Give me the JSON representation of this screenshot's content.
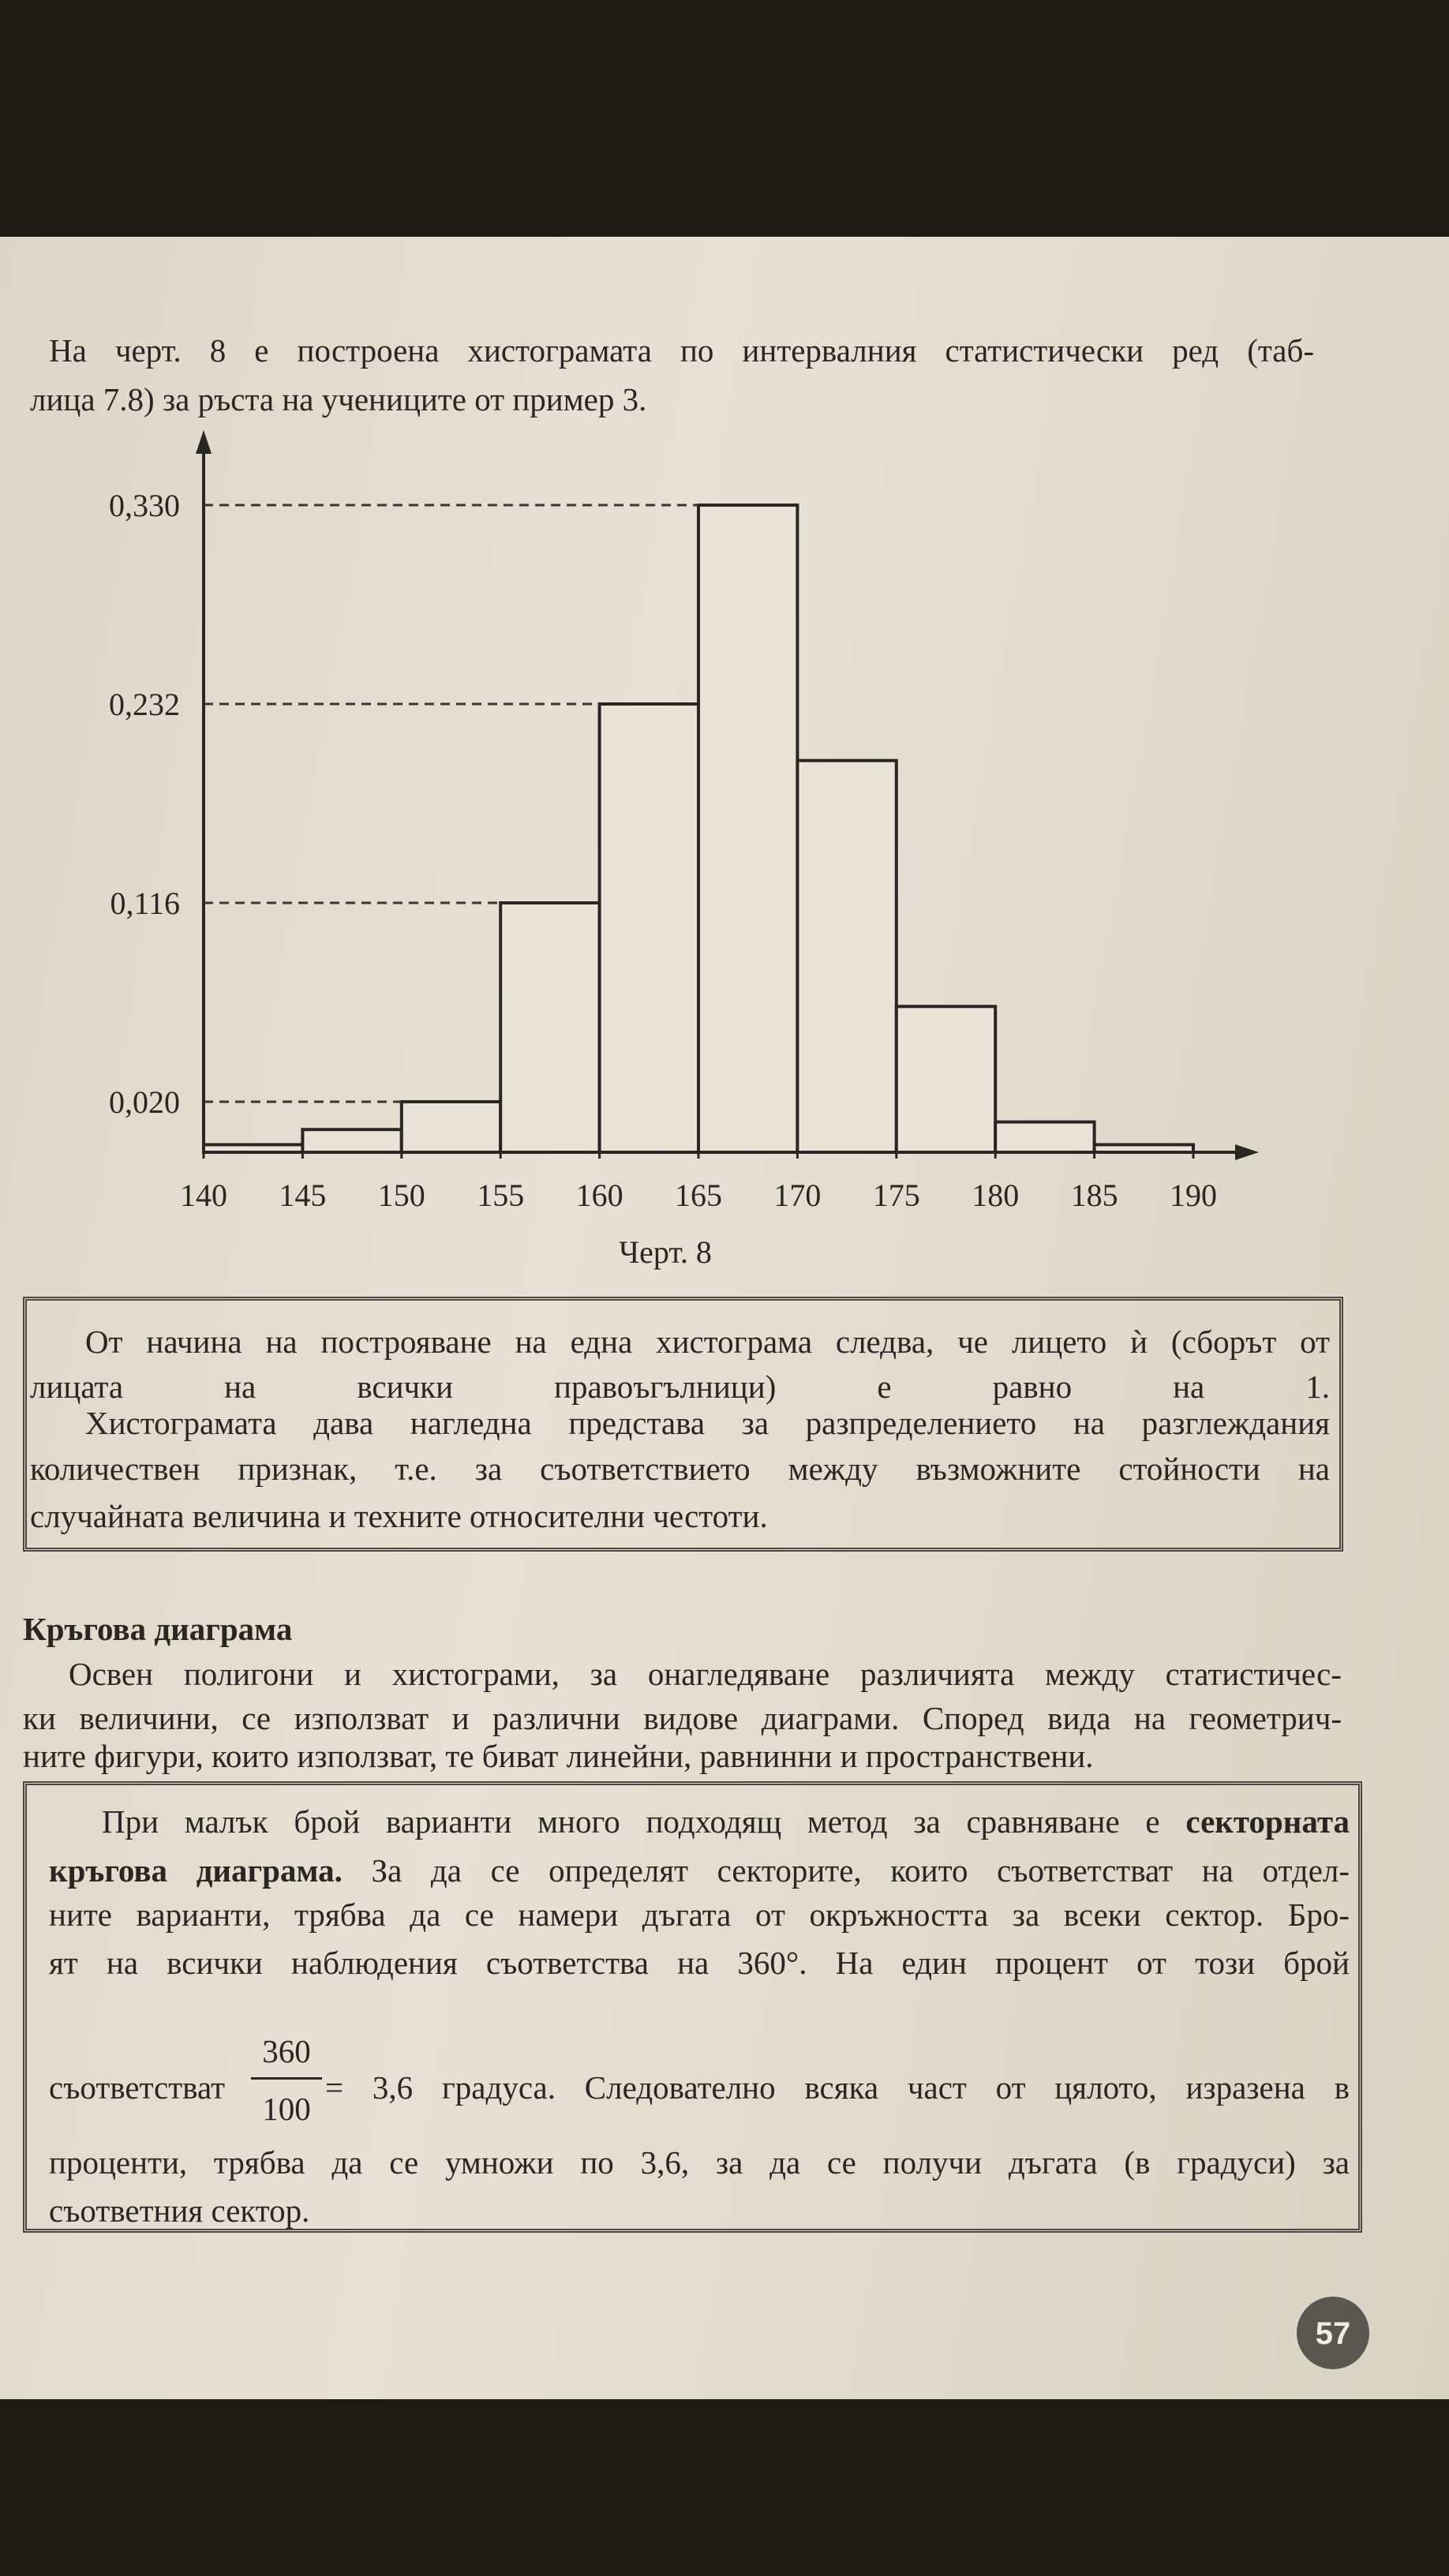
{
  "intro": {
    "lines": [
      "На черт. 8 е построена хистограмата по интервалния статистически ред (таб-",
      "лица 7.8) за ръста на учениците от пример 3."
    ]
  },
  "chart_data": {
    "type": "histogram",
    "bins": [
      140,
      145,
      150,
      155,
      160,
      165,
      170,
      175,
      180,
      185,
      190
    ],
    "values": [
      0.003,
      0.009,
      0.02,
      0.116,
      0.232,
      0.33,
      0.199,
      0.066,
      0.012,
      0.003
    ],
    "xlim": [
      140,
      190
    ],
    "xticks": [
      140,
      145,
      150,
      155,
      160,
      165,
      170,
      175,
      180,
      185,
      190
    ],
    "ylim": [
      0,
      0.33
    ],
    "yticks": [
      {
        "value": 0.02,
        "label": "0,020"
      },
      {
        "value": 0.116,
        "label": "0,116"
      },
      {
        "value": 0.232,
        "label": "0,232"
      },
      {
        "value": 0.33,
        "label": "0,330"
      }
    ],
    "color": "#e8e4d8",
    "grid": true,
    "caption": "Черт. 8"
  },
  "box1": {
    "lines": [
      "От начина на построяване на една хистограма следва, че лицето ѝ (сборът от",
      "лицата на всички правоъгълници) е равно на 1.",
      "Хистограмата дава нагледна представа за разпределението на разглеждания",
      "количествен признак, т.е. за съответствието между възможните стойности на",
      "случайната величина и техните относителни честоти."
    ]
  },
  "heading": "Кръгова диаграма",
  "paragraph": {
    "lines": [
      "Освен полигони и хистограми, за онагледяване различията между статистичес-",
      "ки величини, се използват и различни видове диаграми. Според вида на геометрич-",
      "ните фигури, които използват, те биват линейни, равнинни и пространствени."
    ]
  },
  "box2": {
    "lines": [
      [
        {
          "text": "При малък брой варианти много подходящ метод за сравняване е"
        },
        {
          "text": "секторната",
          "bold": true
        }
      ],
      [
        {
          "text": "кръгова диаграма.",
          "bold": true
        },
        {
          "text": "За да се определят секторите, които съответстват на отдел-"
        }
      ],
      [
        {
          "text": "ните варианти, трябва да се намери дъгата от окръжността за всеки сектор. Бро-"
        }
      ],
      [
        {
          "text": "ят на всички наблюдения съответства на 360°. На един процент от този брой"
        }
      ]
    ],
    "formula": {
      "before": "съответстват",
      "numerator": "360",
      "denominator": "100",
      "after": "= 3,6  градуса. Следователно всяка част от цялото, изразена в"
    },
    "tail": [
      "проценти, трябва да се умножи по 3,6, за да се получи дъгата (в градуси) за",
      "съответния сектор."
    ]
  },
  "page_number": "57"
}
